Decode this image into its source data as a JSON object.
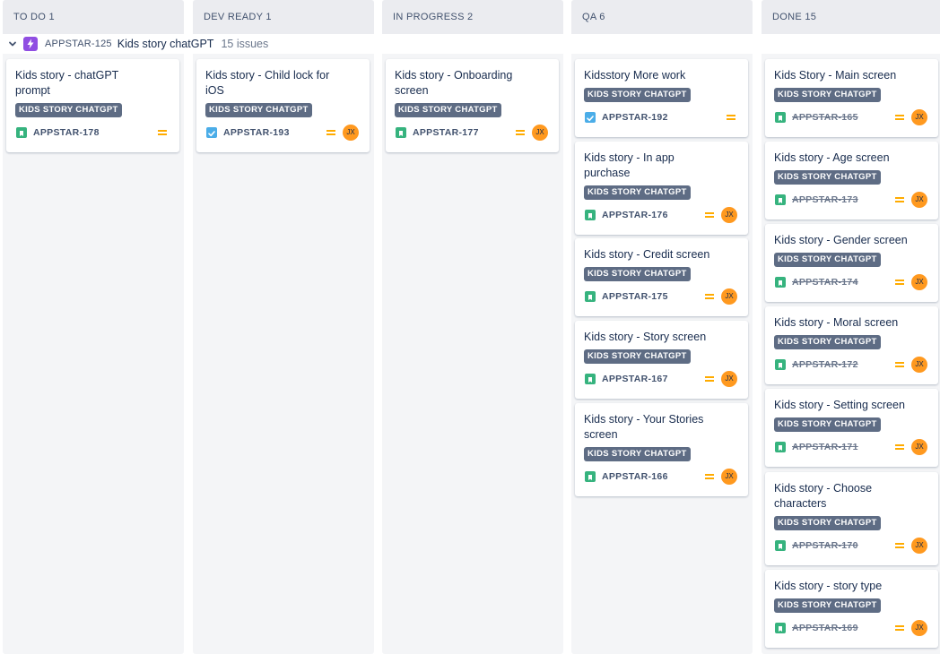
{
  "columns": [
    {
      "title": "TO DO 1"
    },
    {
      "title": "DEV READY 1"
    },
    {
      "title": "IN PROGRESS 2"
    },
    {
      "title": "QA 6"
    },
    {
      "title": "DONE 15"
    }
  ],
  "swimlane": {
    "epic_key": "APPSTAR-125",
    "epic_name": "Kids story chatGPT",
    "issue_count": "15 issues",
    "epic_icon": "lightning-icon",
    "expand_icon": "chevron-down-icon"
  },
  "cards": [
    {
      "title": "Kids story - chatGPT prompt",
      "label": "KIDS STORY CHATGPT",
      "key": "APPSTAR-178",
      "type": "story",
      "priority": "medium",
      "assignee": "",
      "done": false
    },
    {
      "title": "Kids story - Child lock for iOS",
      "label": "KIDS STORY CHATGPT",
      "key": "APPSTAR-193",
      "type": "task",
      "priority": "medium",
      "assignee": "JX",
      "done": false
    },
    {
      "title": "Kids story - Onboarding screen",
      "label": "KIDS STORY CHATGPT",
      "key": "APPSTAR-177",
      "type": "story",
      "priority": "medium",
      "assignee": "JX",
      "done": false
    },
    {
      "title": "Kidsstory More work",
      "label": "KIDS STORY CHATGPT",
      "key": "APPSTAR-192",
      "type": "task",
      "priority": "medium",
      "assignee": "",
      "done": false
    },
    {
      "title": "Kids story - In app purchase",
      "label": "KIDS STORY CHATGPT",
      "key": "APPSTAR-176",
      "type": "story",
      "priority": "medium",
      "assignee": "JX",
      "done": false
    },
    {
      "title": "Kids story - Credit screen",
      "label": "KIDS STORY CHATGPT",
      "key": "APPSTAR-175",
      "type": "story",
      "priority": "medium",
      "assignee": "JX",
      "done": false
    },
    {
      "title": "Kids story - Story screen",
      "label": "KIDS STORY CHATGPT",
      "key": "APPSTAR-167",
      "type": "story",
      "priority": "medium",
      "assignee": "JX",
      "done": false
    },
    {
      "title": "Kids story - Your Stories screen",
      "label": "KIDS STORY CHATGPT",
      "key": "APPSTAR-166",
      "type": "story",
      "priority": "medium",
      "assignee": "JX",
      "done": false
    },
    {
      "title": "Kids Story - Main screen",
      "label": "KIDS STORY CHATGPT",
      "key": "APPSTAR-165",
      "type": "story",
      "priority": "medium",
      "assignee": "JX",
      "done": true
    },
    {
      "title": "Kids story - Age screen",
      "label": "KIDS STORY CHATGPT",
      "key": "APPSTAR-173",
      "type": "story",
      "priority": "medium",
      "assignee": "JX",
      "done": true
    },
    {
      "title": "Kids story - Gender screen",
      "label": "KIDS STORY CHATGPT",
      "key": "APPSTAR-174",
      "type": "story",
      "priority": "medium",
      "assignee": "JX",
      "done": true
    },
    {
      "title": "Kids story - Moral screen",
      "label": "KIDS STORY CHATGPT",
      "key": "APPSTAR-172",
      "type": "story",
      "priority": "medium",
      "assignee": "JX",
      "done": true
    },
    {
      "title": "Kids story - Setting screen",
      "label": "KIDS STORY CHATGPT",
      "key": "APPSTAR-171",
      "type": "story",
      "priority": "medium",
      "assignee": "JX",
      "done": true
    },
    {
      "title": "Kids story - Choose characters",
      "label": "KIDS STORY CHATGPT",
      "key": "APPSTAR-170",
      "type": "story",
      "priority": "medium",
      "assignee": "JX",
      "done": true
    },
    {
      "title": "Kids story - story type",
      "label": "KIDS STORY CHATGPT",
      "key": "APPSTAR-169",
      "type": "story",
      "priority": "medium",
      "assignee": "JX",
      "done": true
    }
  ],
  "colors": {
    "epic": "#904ee2",
    "story": "#36b37e",
    "task": "#4bade8",
    "priority_medium": "#ffab00",
    "avatar": "#ff991f",
    "label_bg": "#5e6c84"
  }
}
